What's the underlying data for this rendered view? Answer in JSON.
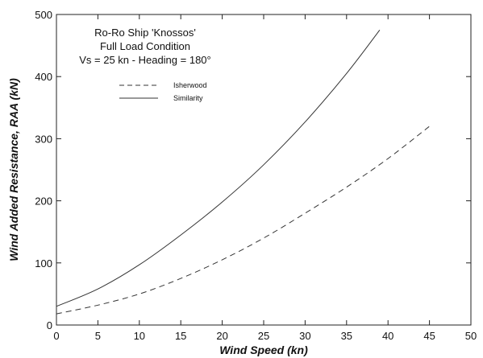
{
  "chart_data": {
    "type": "line",
    "xlabel": "Wind Speed  (kn)",
    "ylabel": "Wind Added Resistance, RAA  (kN)",
    "xlim": [
      0,
      50
    ],
    "ylim": [
      0,
      500
    ],
    "xticks": [
      0,
      5,
      10,
      15,
      20,
      25,
      30,
      35,
      40,
      45,
      50
    ],
    "yticks": [
      0,
      100,
      200,
      300,
      400,
      500
    ],
    "grid": false,
    "legend_position": "top-left",
    "annotation": [
      "Ro-Ro Ship 'Knossos'",
      "Full Load Condition",
      "Vs = 25 kn - Heading = 180°"
    ],
    "series": [
      {
        "name": "Isherwood",
        "style": "dashed",
        "color": "#333333",
        "x": [
          0,
          5,
          10,
          15,
          20,
          25,
          30,
          35,
          40,
          45
        ],
        "y": [
          18,
          32,
          50,
          75,
          105,
          140,
          180,
          222,
          268,
          320
        ]
      },
      {
        "name": "Similarity",
        "style": "solid",
        "color": "#333333",
        "x": [
          0,
          5,
          10,
          15,
          20,
          25,
          30,
          35,
          39
        ],
        "y": [
          30,
          58,
          97,
          145,
          198,
          258,
          327,
          405,
          475
        ]
      }
    ]
  }
}
